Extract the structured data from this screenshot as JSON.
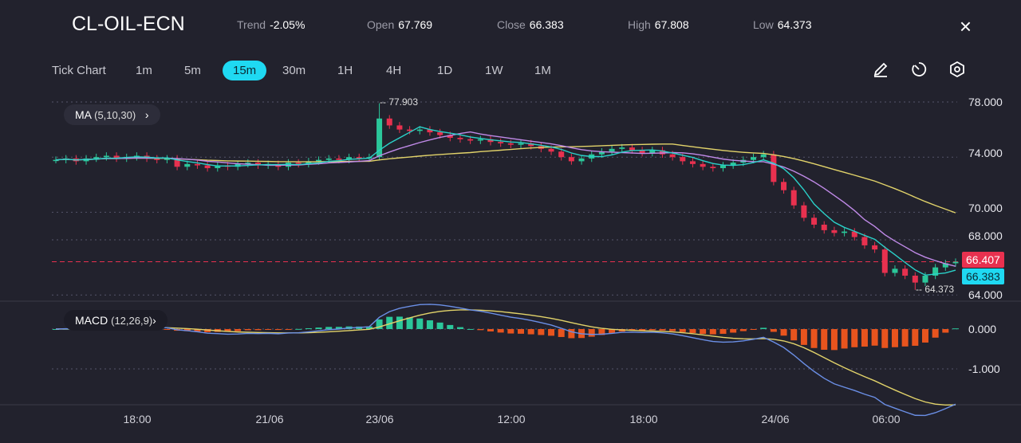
{
  "header": {
    "symbol": "CL-OIL-ECN",
    "trend_label": "Trend",
    "trend": "-2.05%",
    "open_label": "Open",
    "open": "67.769",
    "close_label": "Close",
    "close": "66.383",
    "high_label": "High",
    "high": "67.808",
    "low_label": "Low",
    "low": "64.373",
    "close_icon": "×"
  },
  "toolbar": {
    "timeframes": [
      "Tick Chart",
      "1m",
      "5m",
      "15m",
      "30m",
      "1H",
      "4H",
      "1D",
      "1W",
      "1M"
    ],
    "active": "15m",
    "icons": [
      "pencil-icon",
      "timer-icon",
      "settings-icon"
    ]
  },
  "indicators": {
    "ma_label": "MA",
    "ma_params": "(5,10,30)",
    "macd_label": "MACD",
    "macd_params": "(12,26,9)"
  },
  "colors": {
    "up": "#2bc79a",
    "down": "#e8314f",
    "ma5": "#2ad1c9",
    "ma10": "#c08ae8",
    "ma30": "#e2d36a",
    "macd": "#6b8fe6",
    "signal": "#e2d36a",
    "hist_up": "#2bc79a",
    "hist_down": "#e8541e"
  },
  "chart_data": {
    "type": "candlestick",
    "price_axis": [
      "78.000",
      "74.000",
      "70.000",
      "68.000",
      "64.000"
    ],
    "price_axis_values": [
      78,
      74,
      70,
      68,
      64
    ],
    "macd_axis": [
      "0.000",
      "-1.000"
    ],
    "x_ticks": [
      "18:00",
      "21/06",
      "23/06",
      "12:00",
      "18:00",
      "24/06",
      "06:00"
    ],
    "high_marker": "77.903",
    "low_marker": "64.373",
    "current_price": "66.407",
    "last_close": "66.383",
    "closes": [
      73.8,
      73.9,
      73.7,
      73.9,
      74.0,
      74.1,
      73.9,
      74.0,
      74.1,
      73.9,
      73.8,
      73.9,
      73.3,
      73.5,
      73.4,
      73.2,
      73.4,
      73.3,
      73.5,
      73.6,
      73.4,
      73.5,
      73.3,
      73.6,
      73.5,
      73.7,
      73.8,
      73.9,
      73.8,
      74.0,
      73.9,
      74.0,
      76.8,
      76.3,
      76.0,
      75.9,
      76.0,
      75.8,
      75.6,
      75.4,
      75.3,
      75.2,
      75.3,
      75.1,
      75.0,
      74.9,
      75.0,
      74.8,
      74.6,
      74.4,
      74.0,
      73.7,
      73.9,
      74.2,
      74.4,
      74.6,
      74.7,
      74.5,
      74.3,
      74.5,
      74.2,
      74.0,
      73.7,
      73.5,
      73.3,
      73.2,
      73.4,
      73.6,
      73.8,
      74.0,
      74.2,
      72.2,
      71.6,
      70.5,
      69.6,
      69.1,
      68.7,
      68.5,
      68.6,
      68.2,
      67.6,
      67.3,
      65.6,
      65.9,
      65.4,
      64.9,
      65.4,
      66.0,
      66.3,
      66.4
    ]
  }
}
